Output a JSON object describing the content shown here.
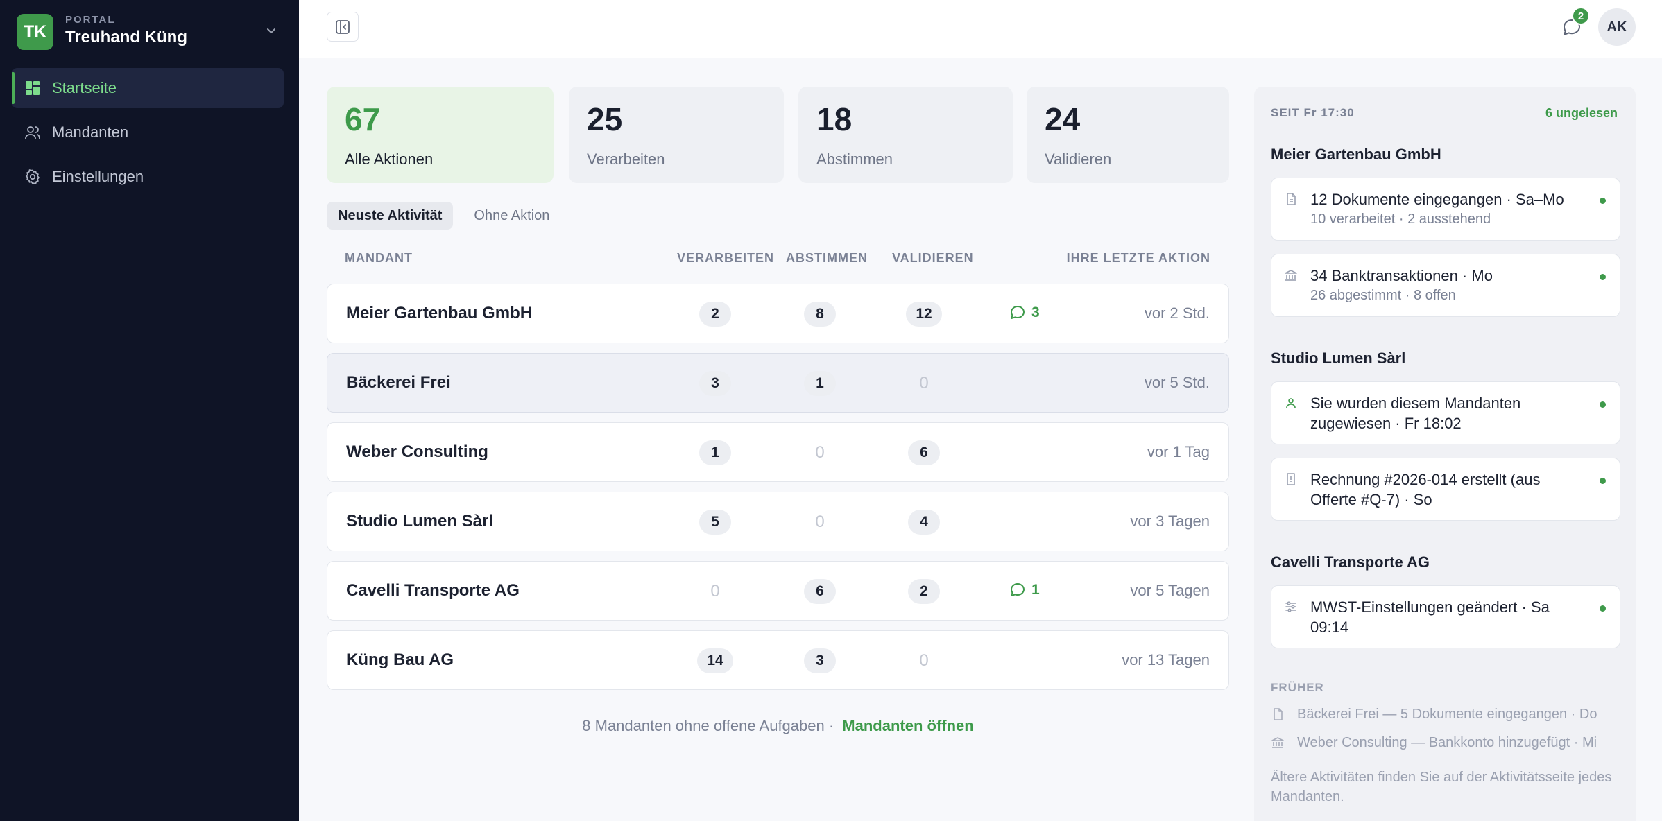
{
  "brand": {
    "initials": "TK",
    "small_label": "PORTAL",
    "name": "Treuhand Küng"
  },
  "nav": [
    {
      "label": "Startseite",
      "icon": "dashboard-icon",
      "active": true
    },
    {
      "label": "Mandanten",
      "icon": "users-icon",
      "active": false
    },
    {
      "label": "Einstellungen",
      "icon": "gear-icon",
      "active": false
    }
  ],
  "topbar": {
    "chat_badge": "2",
    "avatar": "AK"
  },
  "stats": [
    {
      "value": "67",
      "label": "Alle Aktionen",
      "active": true
    },
    {
      "value": "25",
      "label": "Verarbeiten",
      "active": false
    },
    {
      "value": "18",
      "label": "Abstimmen",
      "active": false
    },
    {
      "value": "24",
      "label": "Validieren",
      "active": false
    }
  ],
  "tabs": [
    {
      "label": "Neuste Aktivität",
      "active": true
    },
    {
      "label": "Ohne Aktion",
      "active": false
    }
  ],
  "table": {
    "headers": {
      "client": "MANDANT",
      "process": "VERARBEITEN",
      "reconcile": "ABSTIMMEN",
      "validate": "VALIDIEREN",
      "last": "IHRE LETZTE AKTION"
    },
    "rows": [
      {
        "name": "Meier Gartenbau GmbH",
        "process": "2",
        "reconcile": "8",
        "validate": "12",
        "comments": "3",
        "last": "vor 2 Std."
      },
      {
        "name": "Bäckerei Frei",
        "process": "3",
        "reconcile": "1",
        "validate": "0",
        "comments": "",
        "last": "vor 5 Std."
      },
      {
        "name": "Weber Consulting",
        "process": "1",
        "reconcile": "0",
        "validate": "6",
        "comments": "",
        "last": "vor 1 Tag"
      },
      {
        "name": "Studio Lumen Sàrl",
        "process": "5",
        "reconcile": "0",
        "validate": "4",
        "comments": "",
        "last": "vor 3 Tagen"
      },
      {
        "name": "Cavelli Transporte AG",
        "process": "0",
        "reconcile": "6",
        "validate": "2",
        "comments": "1",
        "last": "vor 5 Tagen"
      },
      {
        "name": "Küng Bau AG",
        "process": "14",
        "reconcile": "3",
        "validate": "0",
        "comments": "",
        "last": "vor 13 Tagen"
      }
    ]
  },
  "footer": {
    "text": "8 Mandanten ohne offene Aufgaben ·",
    "link": "Mandanten öffnen"
  },
  "panel": {
    "since": "SEIT Fr 17:30",
    "unread": "6 ungelesen",
    "groups": [
      {
        "title": "Meier Gartenbau GmbH",
        "items": [
          {
            "icon": "document-icon",
            "title": "12 Dokumente eingegangen · Sa–Mo",
            "sub": "10 verarbeitet · 2 ausstehend"
          },
          {
            "icon": "bank-icon",
            "title": "34 Banktransaktionen · Mo",
            "sub": "26 abgestimmt · 8 offen"
          }
        ]
      },
      {
        "title": "Studio Lumen Sàrl",
        "items": [
          {
            "icon": "user-assigned-icon",
            "title": "Sie wurden diesem Mandanten zugewiesen · Fr 18:02",
            "sub": ""
          },
          {
            "icon": "invoice-icon",
            "title": "Rechnung #2026-014 erstellt (aus Offerte #Q-7) · So",
            "sub": ""
          }
        ]
      },
      {
        "title": "Cavelli Transporte AG",
        "items": [
          {
            "icon": "sliders-icon",
            "title": "MWST-Einstellungen geändert · Sa 09:14",
            "sub": ""
          }
        ]
      }
    ],
    "earlier_title": "FRÜHER",
    "earlier": [
      {
        "icon": "document-icon",
        "text": "Bäckerei Frei — 5 Dokumente eingegangen · Do"
      },
      {
        "icon": "bank-icon",
        "text": "Weber Consulting — Bankkonto hinzugefügt · Mi"
      }
    ],
    "note": "Ältere Aktivitäten finden Sie auf der Aktivitätsseite jedes Mandanten."
  }
}
